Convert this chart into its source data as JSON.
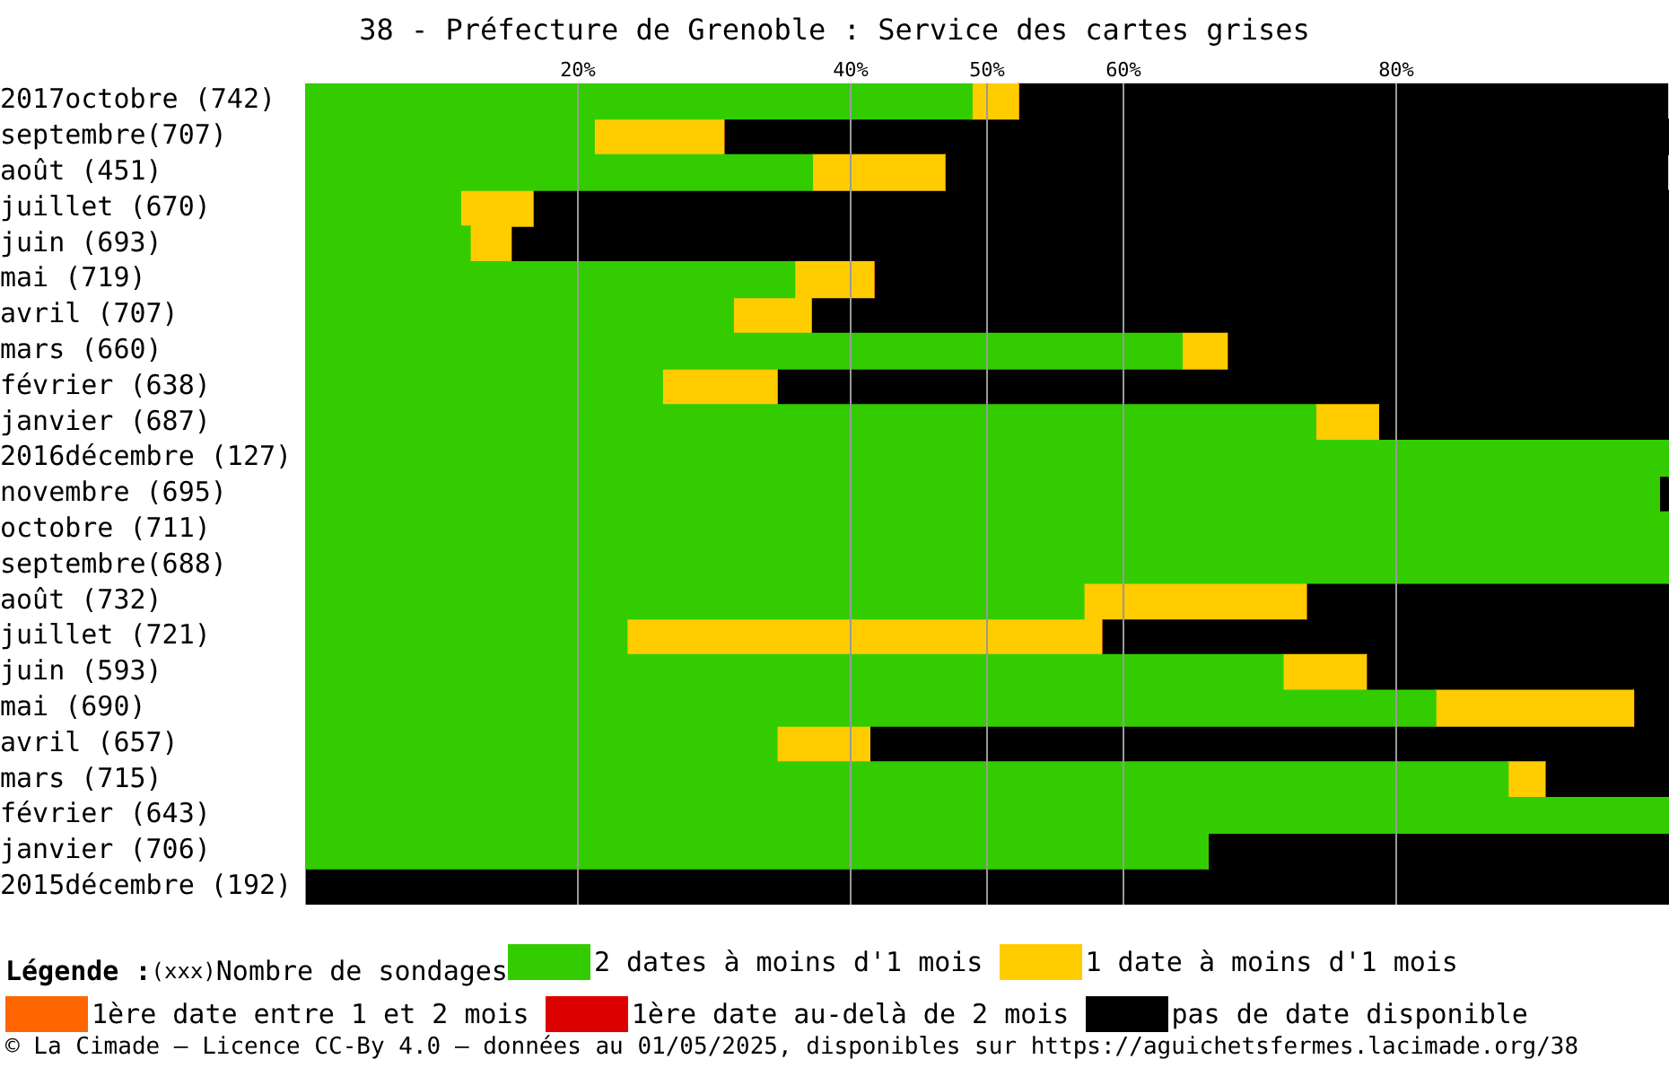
{
  "chart_data": {
    "type": "bar",
    "orientation": "horizontal",
    "stacked": true,
    "title": "38 - Préfecture de Grenoble : Service des cartes grises",
    "categories": [
      "2017octobre (742)",
      "septembre(707)",
      "août (451)",
      "juillet (670)",
      "juin (693)",
      "mai (719)",
      "avril (707)",
      "mars (660)",
      "février (638)",
      "janvier (687)",
      "2016décembre (127)",
      "novembre (695)",
      "octobre (711)",
      "septembre(688)",
      "août (732)",
      "juillet (721)",
      "juin (593)",
      "mai (690)",
      "avril (657)",
      "mars (715)",
      "février (643)",
      "janvier (706)",
      "2015décembre (192)"
    ],
    "series": [
      {
        "name": "2 dates à moins d'1 mois",
        "color": "#33cc00",
        "values": [
          48.9,
          21.2,
          37.2,
          11.4,
          12.1,
          35.9,
          31.4,
          64.3,
          26.2,
          74.1,
          100,
          99.3,
          100,
          100,
          57.1,
          23.6,
          71.7,
          82.9,
          34.6,
          88.2,
          100,
          66.2,
          0
        ]
      },
      {
        "name": "1 date à moins d'1 mois",
        "color": "#ffcc00",
        "values": [
          3.4,
          9.5,
          9.7,
          5.3,
          3.0,
          5.8,
          5.7,
          3.3,
          8.4,
          4.6,
          0,
          0,
          0,
          0,
          16.3,
          34.8,
          6.1,
          14.5,
          6.8,
          2.7,
          0,
          0,
          0
        ]
      },
      {
        "name": "1ère date entre 1 et 2 mois",
        "color": "#ff6600",
        "values": [
          0,
          0,
          0,
          0,
          0,
          0,
          0,
          0,
          0,
          0,
          0,
          0,
          0,
          0,
          0,
          0,
          0,
          0,
          0,
          0,
          0,
          0,
          0
        ]
      },
      {
        "name": "1ère date au-delà de 2 mois",
        "color": "#dd0000",
        "values": [
          0,
          0,
          0,
          0,
          0,
          0,
          0,
          0,
          0,
          0,
          0,
          0,
          0,
          0,
          0,
          0,
          0,
          0,
          0,
          0,
          0,
          0,
          0
        ]
      },
      {
        "name": "pas de date disponible",
        "color": "#000000",
        "values": [
          47.6,
          69.3,
          53.0,
          83.3,
          84.9,
          58.3,
          62.9,
          32.4,
          65.4,
          21.3,
          0,
          0.7,
          0,
          0,
          26.6,
          41.6,
          22.2,
          2.6,
          58.6,
          9.1,
          0,
          33.8,
          100
        ]
      }
    ],
    "xlim": [
      0,
      100
    ],
    "xticks": [
      {
        "value": 20,
        "label": "20%"
      },
      {
        "value": 40,
        "label": "40%"
      },
      {
        "value": 50,
        "label": "50%"
      },
      {
        "value": 60,
        "label": "60%"
      },
      {
        "value": 80,
        "label": "80%"
      }
    ],
    "grid": "x",
    "legend": "bottom",
    "legend_title": "Légende :",
    "annotations": [
      "(xxx)Nombre de sondages",
      "© La Cimade – Licence CC-By 4.0 – données au 01/05/2025, disponibles sur https://aguichetsfermes.lacimade.org/38"
    ]
  }
}
